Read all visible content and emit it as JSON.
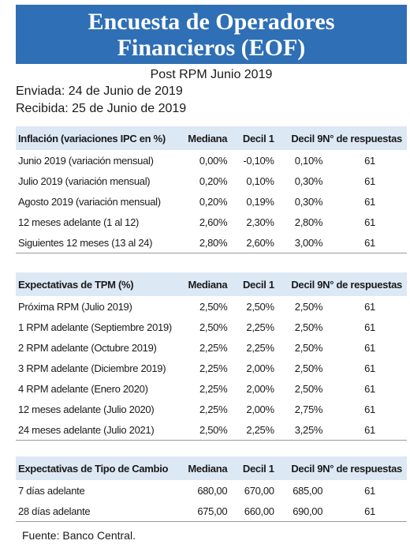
{
  "header": {
    "title_line1": "Encuesta de Operadores",
    "title_line2": "Financieros (EOF)",
    "subtitle": "Post RPM Junio 2019",
    "sent": "Enviada:  24 de Junio de 2019",
    "received": "Recibida: 25 de Junio de 2019"
  },
  "colors": {
    "banner": "#2e6fb5",
    "header_row": "#dde8f5"
  },
  "tables": {
    "inflation": {
      "headers": [
        "Inflación (variaciones IPC en %)",
        "Mediana",
        "Decil 1",
        "Decil 9",
        "N° de respuestas"
      ],
      "rows": [
        [
          "Junio 2019 (variación mensual)",
          "0,00%",
          "-0,10%",
          "0,10%",
          "61"
        ],
        [
          "Julio 2019 (variación mensual)",
          "0,20%",
          "0,10%",
          "0,30%",
          "61"
        ],
        [
          "Agosto 2019 (variación mensual)",
          "0,20%",
          "0,19%",
          "0,30%",
          "61"
        ],
        [
          "12 meses adelante (1 al 12)",
          "2,60%",
          "2,30%",
          "2,80%",
          "61"
        ],
        [
          "Siguientes 12 meses (13 al 24)",
          "2,80%",
          "2,60%",
          "3,00%",
          "61"
        ]
      ]
    },
    "tpm": {
      "headers": [
        "Expectativas de TPM (%)",
        "Mediana",
        "Decil 1",
        "Decil 9",
        "N° de respuestas"
      ],
      "rows": [
        [
          "Próxima  RPM  (Julio 2019)",
          "2,50%",
          "2,50%",
          "2,50%",
          "61"
        ],
        [
          "1 RPM adelante  (Septiembre 2019)",
          "2,50%",
          "2,25%",
          "2,50%",
          "61"
        ],
        [
          "2 RPM adelante  (Octubre 2019)",
          "2,25%",
          "2,25%",
          "2,50%",
          "61"
        ],
        [
          "3 RPM adelante  (Diciembre 2019)",
          "2,25%",
          "2,00%",
          "2,50%",
          "61"
        ],
        [
          "4 RPM adelante  (Enero 2020)",
          "2,25%",
          "2,00%",
          "2,50%",
          "61"
        ],
        [
          "12 meses adelante  (Julio 2020)",
          "2,25%",
          "2,00%",
          "2,75%",
          "61"
        ],
        [
          "24 meses adelante  (Julio 2021)",
          "2,50%",
          "2,25%",
          "3,25%",
          "61"
        ]
      ]
    },
    "fx": {
      "headers": [
        "Expectativas de Tipo de Cambio",
        "Mediana",
        "Decil 1",
        "Decil 9",
        "N° de respuestas"
      ],
      "rows": [
        [
          "7 días adelante",
          "680,00",
          "670,00",
          "685,00",
          "61"
        ],
        [
          "28 días adelante",
          "675,00",
          "660,00",
          "690,00",
          "61"
        ]
      ]
    }
  },
  "footer": {
    "source": "Fuente: Banco Central."
  }
}
